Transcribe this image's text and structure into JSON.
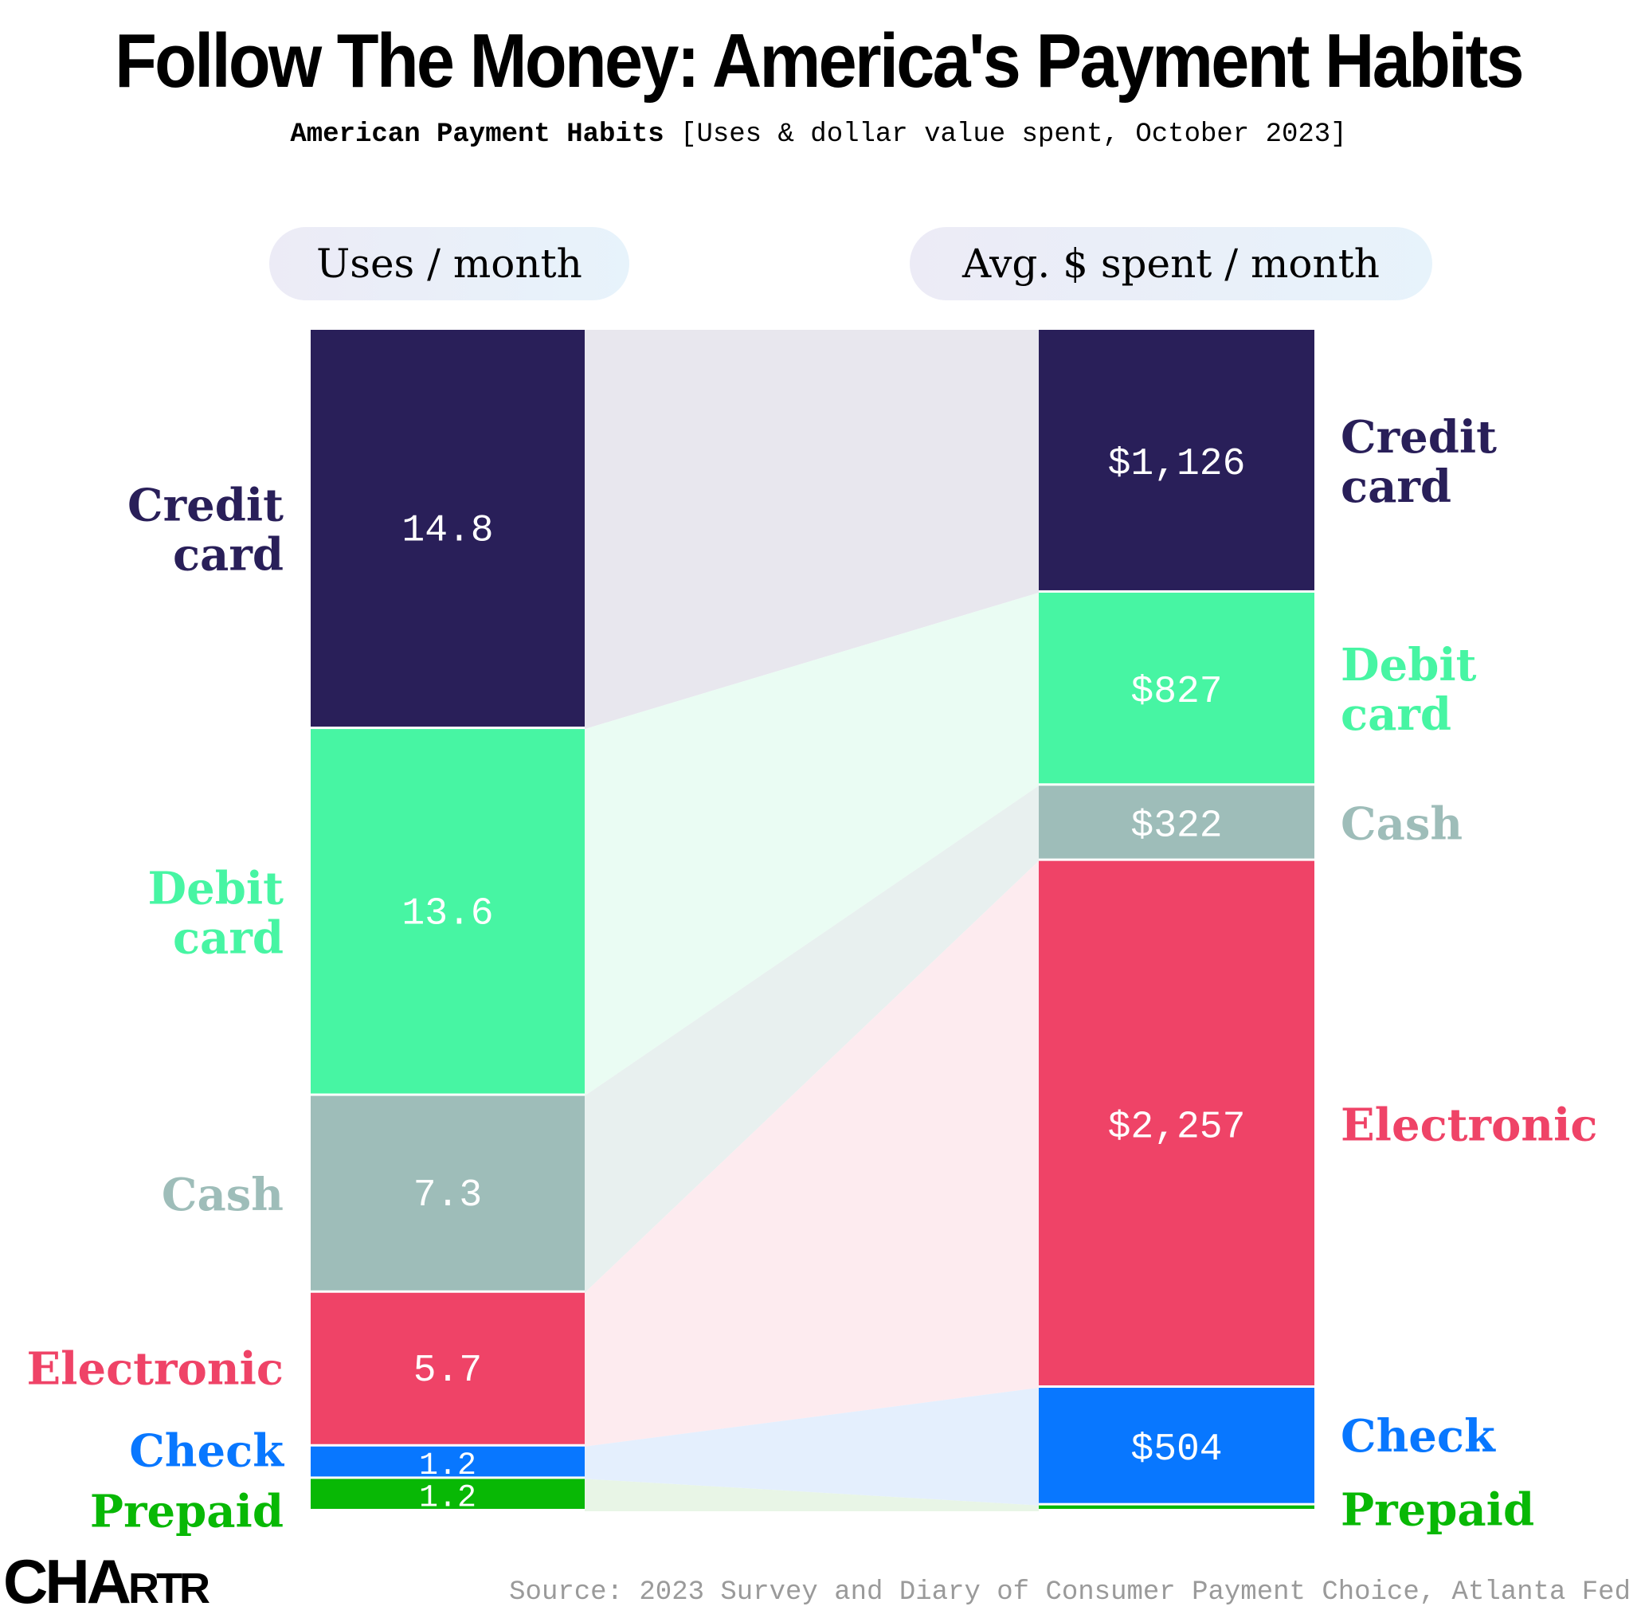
{
  "header": {
    "title": "Follow The Money: America's Payment Habits",
    "subtitle_bold": "American Payment Habits",
    "subtitle_rest": "[Uses & dollar value spent, October 2023]"
  },
  "columns": {
    "left_label": "Uses / month",
    "right_label": "Avg. $ spent / month"
  },
  "footer": {
    "brand_big": "CHA",
    "brand_small": "RTR",
    "source": "Source: 2023 Survey and Diary of Consumer Payment Choice, Atlanta Fed"
  },
  "chart_data": {
    "type": "bar",
    "stacked": true,
    "title": "Follow The Money: America's Payment Habits",
    "subtitle": "American Payment Habits [Uses & dollar value spent, October 2023]",
    "bars": [
      "Uses / month",
      "Avg. $ spent / month"
    ],
    "series": [
      {
        "name": "Credit card",
        "label_lines": [
          "Credit",
          "card"
        ],
        "color": "#291f59",
        "flow_color": "#e8e7ee",
        "uses": 14.8,
        "uses_label": "14.8",
        "spent": 1126,
        "spent_label": "$1,126"
      },
      {
        "name": "Debit card",
        "label_lines": [
          "Debit",
          "card"
        ],
        "color": "#47f5a3",
        "flow_color": "#eafcf3",
        "uses": 13.6,
        "uses_label": "13.6",
        "spent": 827,
        "spent_label": "$827"
      },
      {
        "name": "Cash",
        "label_lines": [
          "Cash"
        ],
        "color": "#9ebdb9",
        "flow_color": "#e8f0ef",
        "uses": 7.3,
        "uses_label": "7.3",
        "spent": 322,
        "spent_label": "$322"
      },
      {
        "name": "Electronic",
        "label_lines": [
          "Electronic"
        ],
        "color": "#ef4367",
        "flow_color": "#fdebef",
        "uses": 5.7,
        "uses_label": "5.7",
        "spent": 2257,
        "spent_label": "$2,257"
      },
      {
        "name": "Check",
        "label_lines": [
          "Check"
        ],
        "color": "#0877ff",
        "flow_color": "#e4effd",
        "uses": 1.2,
        "uses_label": "1.2",
        "spent": 504,
        "spent_label": "$504"
      },
      {
        "name": "Prepaid",
        "label_lines": [
          "Prepaid"
        ],
        "color": "#08b805",
        "flow_color": "#e8f5e6",
        "uses": 1.2,
        "uses_label": "1.2",
        "spent": 25,
        "spent_label": ""
      }
    ],
    "source": "Source: 2023 Survey and Diary of Consumer Payment Choice, Atlanta Fed"
  }
}
